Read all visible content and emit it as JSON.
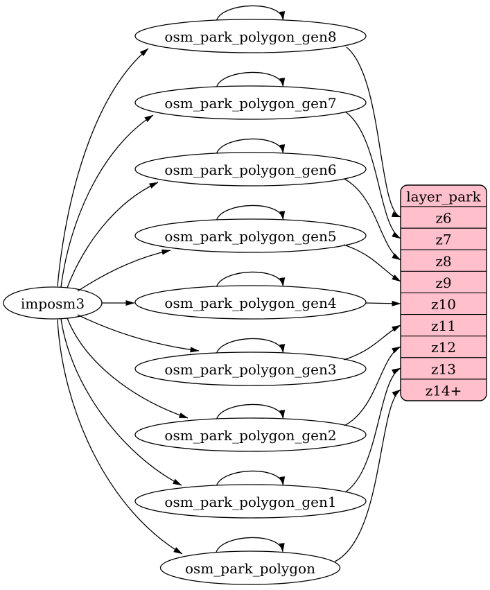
{
  "graph": {
    "background": "#ffffff",
    "edge_color": "#000000",
    "node_fill": "#ffffff",
    "node_stroke": "#000000",
    "text_color": "#000000",
    "source": {
      "id": "imposm3",
      "label": "imposm3"
    },
    "tables": [
      {
        "id": "osm_park_polygon_gen8",
        "label": "osm_park_polygon_gen8"
      },
      {
        "id": "osm_park_polygon_gen7",
        "label": "osm_park_polygon_gen7"
      },
      {
        "id": "osm_park_polygon_gen6",
        "label": "osm_park_polygon_gen6"
      },
      {
        "id": "osm_park_polygon_gen5",
        "label": "osm_park_polygon_gen5"
      },
      {
        "id": "osm_park_polygon_gen4",
        "label": "osm_park_polygon_gen4"
      },
      {
        "id": "osm_park_polygon_gen3",
        "label": "osm_park_polygon_gen3"
      },
      {
        "id": "osm_park_polygon_gen2",
        "label": "osm_park_polygon_gen2"
      },
      {
        "id": "osm_park_polygon_gen1",
        "label": "osm_park_polygon_gen1"
      },
      {
        "id": "osm_park_polygon",
        "label": "osm_park_polygon"
      }
    ],
    "layer": {
      "id": "layer_park",
      "title": "layer_park",
      "fill": "#ffc0cb",
      "stroke": "#000000",
      "rows": [
        "z6",
        "z7",
        "z8",
        "z9",
        "z10",
        "z11",
        "z12",
        "z13",
        "z14+"
      ]
    },
    "edges": [
      {
        "from": "imposm3",
        "to": "osm_park_polygon_gen8"
      },
      {
        "from": "imposm3",
        "to": "osm_park_polygon_gen7"
      },
      {
        "from": "imposm3",
        "to": "osm_park_polygon_gen6"
      },
      {
        "from": "imposm3",
        "to": "osm_park_polygon_gen5"
      },
      {
        "from": "imposm3",
        "to": "osm_park_polygon_gen4"
      },
      {
        "from": "imposm3",
        "to": "osm_park_polygon_gen3"
      },
      {
        "from": "imposm3",
        "to": "osm_park_polygon_gen2"
      },
      {
        "from": "imposm3",
        "to": "osm_park_polygon_gen1"
      },
      {
        "from": "imposm3",
        "to": "osm_park_polygon"
      },
      {
        "from": "osm_park_polygon_gen8",
        "to": "osm_park_polygon_gen8"
      },
      {
        "from": "osm_park_polygon_gen7",
        "to": "osm_park_polygon_gen7"
      },
      {
        "from": "osm_park_polygon_gen6",
        "to": "osm_park_polygon_gen6"
      },
      {
        "from": "osm_park_polygon_gen5",
        "to": "osm_park_polygon_gen5"
      },
      {
        "from": "osm_park_polygon_gen4",
        "to": "osm_park_polygon_gen4"
      },
      {
        "from": "osm_park_polygon_gen3",
        "to": "osm_park_polygon_gen3"
      },
      {
        "from": "osm_park_polygon_gen2",
        "to": "osm_park_polygon_gen2"
      },
      {
        "from": "osm_park_polygon_gen1",
        "to": "osm_park_polygon_gen1"
      },
      {
        "from": "osm_park_polygon",
        "to": "osm_park_polygon"
      },
      {
        "from": "osm_park_polygon_gen8",
        "to": "layer_park",
        "row": "z6"
      },
      {
        "from": "osm_park_polygon_gen7",
        "to": "layer_park",
        "row": "z7"
      },
      {
        "from": "osm_park_polygon_gen6",
        "to": "layer_park",
        "row": "z8"
      },
      {
        "from": "osm_park_polygon_gen5",
        "to": "layer_park",
        "row": "z9"
      },
      {
        "from": "osm_park_polygon_gen4",
        "to": "layer_park",
        "row": "z10"
      },
      {
        "from": "osm_park_polygon_gen3",
        "to": "layer_park",
        "row": "z11"
      },
      {
        "from": "osm_park_polygon_gen2",
        "to": "layer_park",
        "row": "z12"
      },
      {
        "from": "osm_park_polygon_gen1",
        "to": "layer_park",
        "row": "z13"
      },
      {
        "from": "osm_park_polygon",
        "to": "layer_park",
        "row": "z14+"
      }
    ]
  }
}
